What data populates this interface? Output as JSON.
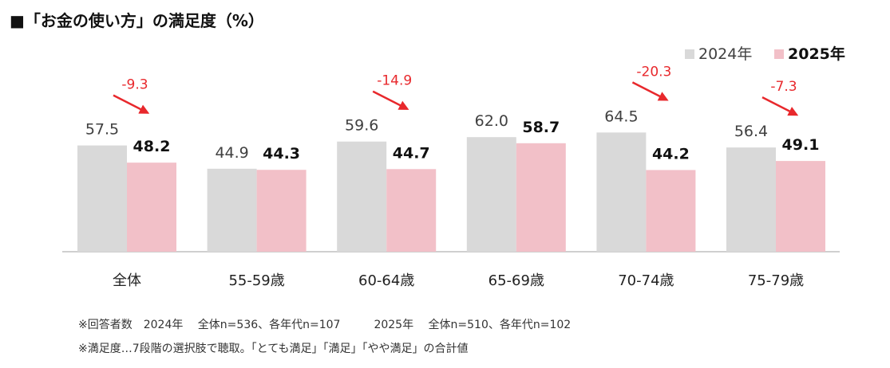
{
  "title": "■「お金の使い方」の満足度（%）",
  "chart_data": {
    "type": "bar",
    "categories": [
      "全体",
      "55-59歳",
      "60-64歳",
      "65-69歳",
      "70-74歳",
      "75-79歳"
    ],
    "series": [
      {
        "name": "2024年",
        "values": [
          57.5,
          44.9,
          59.6,
          62.0,
          64.5,
          56.4
        ],
        "color": "#d9d9d9"
      },
      {
        "name": "2025年",
        "values": [
          48.2,
          44.3,
          44.7,
          58.7,
          44.2,
          49.1
        ],
        "color": "#f2c0c8"
      }
    ],
    "value_labels": [
      [
        "57.5",
        "44.9",
        "59.6",
        "62.0",
        "64.5",
        "56.4"
      ],
      [
        "48.2",
        "44.3",
        "44.7",
        "58.7",
        "44.2",
        "49.1"
      ]
    ],
    "changes": [
      {
        "category_index": 0,
        "label": "-9.3"
      },
      {
        "category_index": 2,
        "label": "-14.9"
      },
      {
        "category_index": 4,
        "label": "-20.3"
      },
      {
        "category_index": 5,
        "label": "-7.3"
      }
    ],
    "change_color": "#e8282c",
    "legend_position": "top-right",
    "ylim": [
      0,
      100
    ],
    "grid": false
  },
  "notes": [
    "※回答者数　2024年　 全体n=536、各年代n=107　　　2025年　 全体n=510、各年代n=102",
    "※満足度…7段階の選択肢で聴取。「とても満足」「満足」「やや満足」の合計値"
  ]
}
